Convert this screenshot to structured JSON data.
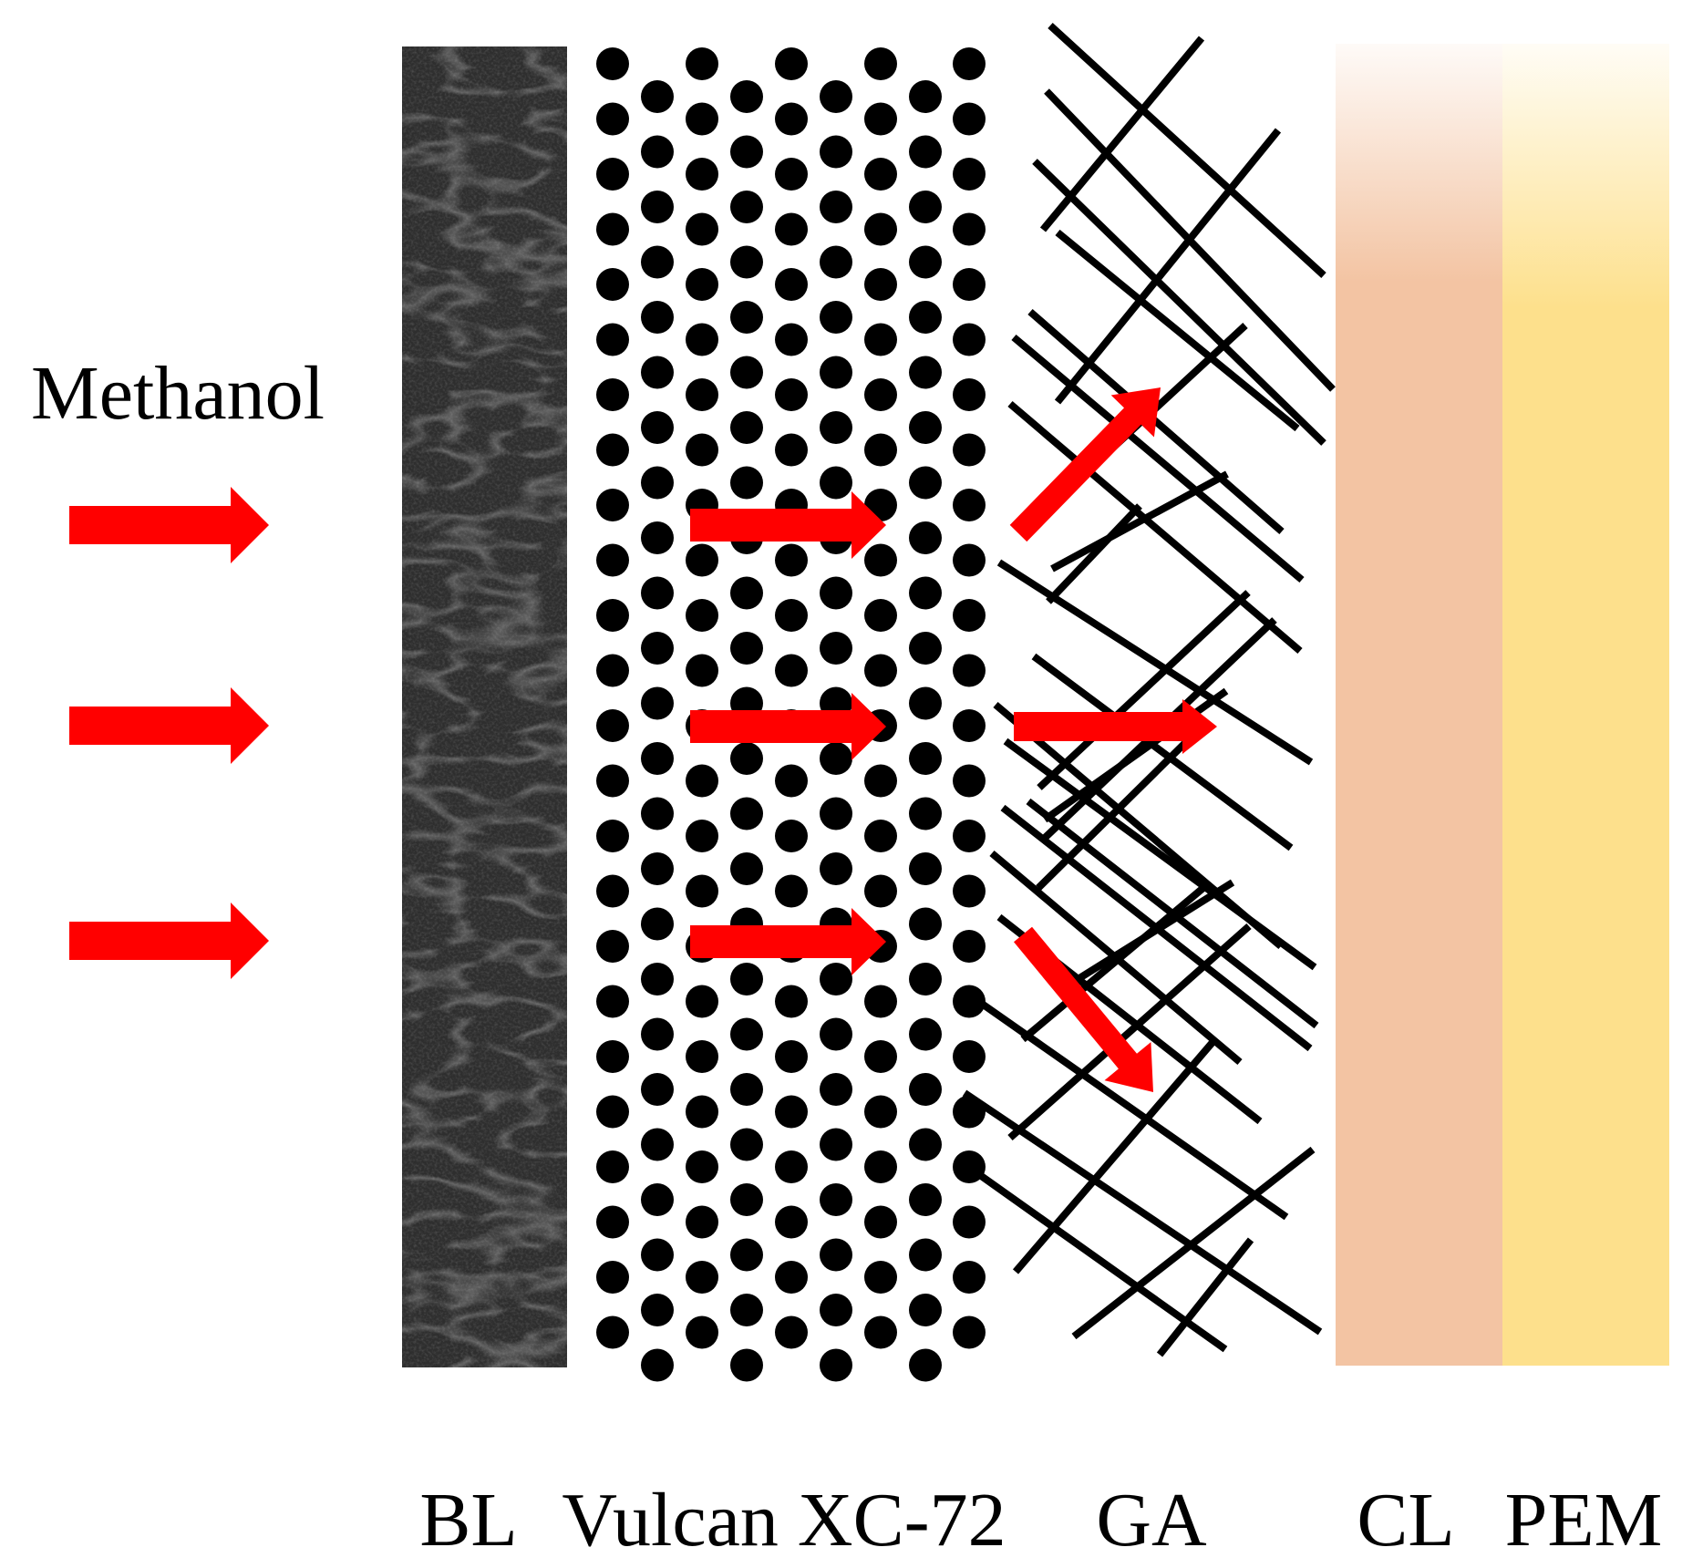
{
  "inlet": {
    "label": "Methanol"
  },
  "layers": [
    {
      "key": "bl",
      "label": "BL"
    },
    {
      "key": "vulcan",
      "label": "Vulcan XC-72"
    },
    {
      "key": "ga",
      "label": "GA"
    },
    {
      "key": "cl",
      "label": "CL"
    },
    {
      "key": "pem",
      "label": "PEM"
    }
  ],
  "colors": {
    "arrow": "#ff0000",
    "bl": "#2e2e2e",
    "particle": "#000000",
    "fiber": "#000000",
    "cl": "#f3c4a3",
    "pem": "#fde08c"
  },
  "icons": {
    "inlet_arrow": "right-arrow-icon",
    "flow_arrow": "red-arrow-icon"
  }
}
